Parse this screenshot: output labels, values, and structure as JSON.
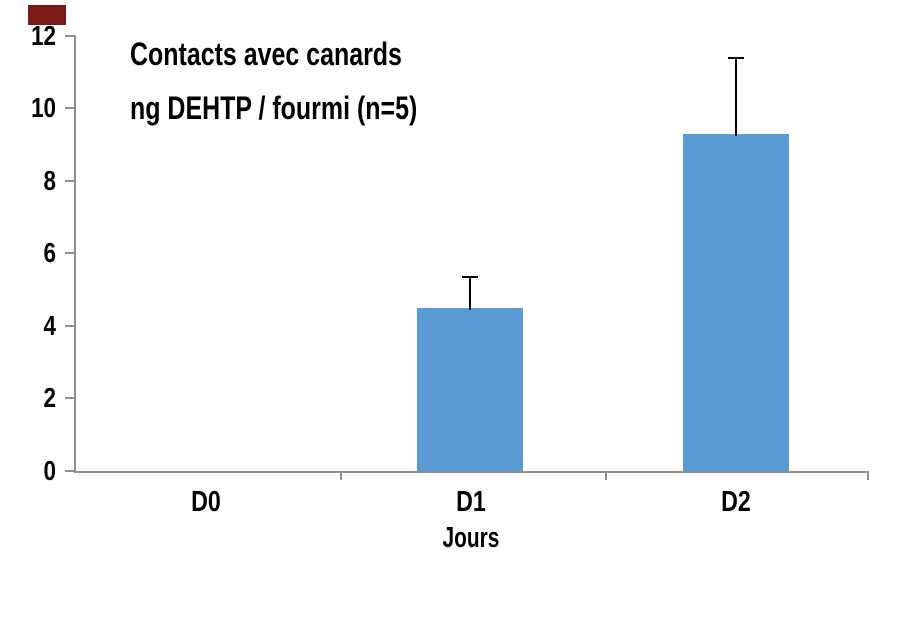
{
  "chart_data": {
    "type": "bar",
    "title": "Contacts avec canards",
    "subtitle": "ng DEHTP / fourmi (n=5)",
    "xlabel": "Jours",
    "ylabel": "",
    "categories": [
      "D0",
      "D1",
      "D2"
    ],
    "values": [
      0,
      4.5,
      9.3
    ],
    "errors_plus": [
      0,
      0.85,
      2.1
    ],
    "ylim": [
      0,
      12
    ],
    "yticks": [
      0,
      2,
      4,
      6,
      8,
      10,
      12
    ],
    "ytick_labels": [
      "0",
      "2",
      "4",
      "6",
      "8",
      "10",
      "12"
    ],
    "grid": false,
    "legend": false,
    "bar_color": "#5B9BD5",
    "axis_color": "#8F8F8F",
    "error_bar_color": "#000000"
  },
  "decoration": {
    "corner_mark_color": "#7A1B17"
  }
}
